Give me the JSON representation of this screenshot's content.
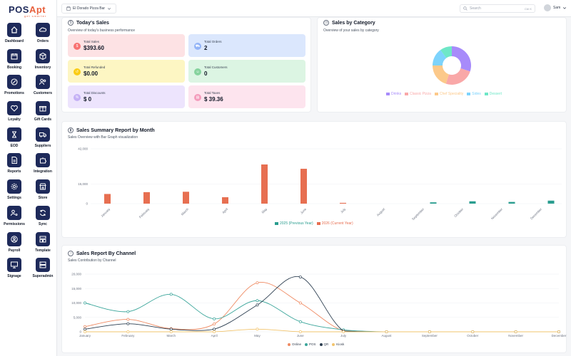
{
  "brand": {
    "name_main": "POS",
    "name_accent": "Apt",
    "tagline": "get smarter"
  },
  "header": {
    "store_name": "El Dorado Pizza Bar",
    "search_placeholder": "Search",
    "search_shortcut": "Ctrl K",
    "user_name": "Sam"
  },
  "sidebar": {
    "items": [
      {
        "label": "Dashboard",
        "icon": "home-icon"
      },
      {
        "label": "Orders",
        "icon": "cloud-icon"
      },
      {
        "label": "Booking",
        "icon": "calendar-icon"
      },
      {
        "label": "Inventory",
        "icon": "box-icon"
      },
      {
        "label": "Promotions",
        "icon": "badge-icon"
      },
      {
        "label": "Customers",
        "icon": "users-icon"
      },
      {
        "label": "Loyalty",
        "icon": "heart-icon"
      },
      {
        "label": "Gift Cards",
        "icon": "gift-icon"
      },
      {
        "label": "EOD",
        "icon": "hourglass-icon"
      },
      {
        "label": "Suppliers",
        "icon": "truck-icon"
      },
      {
        "label": "Reports",
        "icon": "file-icon"
      },
      {
        "label": "Integration",
        "icon": "puzzle-icon"
      },
      {
        "label": "Settings",
        "icon": "gear-icon"
      },
      {
        "label": "Store",
        "icon": "store-icon"
      },
      {
        "label": "Permissions",
        "icon": "user-key-icon"
      },
      {
        "label": "Sync",
        "icon": "sync-icon"
      },
      {
        "label": "Payroll",
        "icon": "user-circle-icon"
      },
      {
        "label": "Template",
        "icon": "template-icon"
      },
      {
        "label": "Signage",
        "icon": "monitor-icon"
      },
      {
        "label": "Superadmin",
        "icon": "server-icon"
      }
    ]
  },
  "todays_sales": {
    "title": "Today's Sales",
    "subtitle": "Overview of today's business performance",
    "stats": [
      {
        "label": "Total Sales",
        "value": "$393.60",
        "bg": "#fde2e4",
        "icon_bg": "#f87171",
        "icon": "$"
      },
      {
        "label": "Total Orders",
        "value": "2",
        "bg": "#dbe7fd",
        "icon_bg": "#93b4f7",
        "icon": "cart"
      },
      {
        "label": "Total Refunded",
        "value": "$0.00",
        "bg": "#fdf6c3",
        "icon_bg": "#facc15",
        "icon": "refund"
      },
      {
        "label": "Total Customers",
        "value": "0",
        "bg": "#dcf5e3",
        "icon_bg": "#86d39e",
        "icon": "users"
      },
      {
        "label": "Total Discounts",
        "value": "$ 0",
        "bg": "#ede4fd",
        "icon_bg": "#c4b0f5",
        "icon": "%"
      },
      {
        "label": "Total Taxes",
        "value": "$ 39.36",
        "bg": "#fde4ee",
        "icon_bg": "#f49cbc",
        "icon": "tax"
      }
    ]
  },
  "sales_by_category": {
    "title": "Sales by Category",
    "subtitle": "Overview of your sales by category",
    "chart_data": {
      "type": "pie",
      "categories": [
        "Drinks",
        "Classic Pizza",
        "Chef Speciality",
        "Sides",
        "Dessert"
      ],
      "values": [
        30,
        25,
        20,
        15,
        10
      ],
      "colors": [
        "#a78bfa",
        "#f9a8a8",
        "#fcc98a",
        "#7dd3fc",
        "#6ee7c7"
      ]
    }
  },
  "monthly_report": {
    "title": "Sales Summary Report by Month",
    "subtitle": "Sales Overview with Bar Graph visualization",
    "chart_data": {
      "type": "bar",
      "categories": [
        "January",
        "February",
        "March",
        "April",
        "May",
        "June",
        "July",
        "August",
        "September",
        "October",
        "November",
        "December"
      ],
      "series": [
        {
          "name": "2025 (Previous Year)",
          "color": "#2a9d8f",
          "values": [
            0,
            0,
            0,
            0,
            0,
            0,
            0,
            0,
            1000,
            1800,
            1300,
            2300
          ]
        },
        {
          "name": "2026 (Current Year)",
          "color": "#e76f51",
          "values": [
            7400,
            8800,
            9100,
            4900,
            30000,
            26700,
            600,
            0,
            0,
            0,
            0,
            0
          ]
        }
      ],
      "yticks": [
        "0",
        "15,000",
        "42,000"
      ],
      "ylim": [
        0,
        42000
      ]
    }
  },
  "channel_report": {
    "title": "Sales Report By Channel",
    "subtitle": "Sales Contribution by Channel",
    "chart_data": {
      "type": "line",
      "categories": [
        "January",
        "February",
        "March",
        "April",
        "May",
        "June",
        "July",
        "August",
        "September",
        "October",
        "November",
        "December"
      ],
      "series": [
        {
          "name": "Online",
          "color": "#ef8a62",
          "values": [
            1800,
            4300,
            1100,
            2700,
            17000,
            10000,
            300,
            0,
            0,
            0,
            0,
            0
          ]
        },
        {
          "name": "POS",
          "color": "#3aa59a",
          "values": [
            10000,
            7000,
            13000,
            4500,
            10800,
            3500,
            700,
            0,
            0,
            0,
            0,
            0
          ]
        },
        {
          "name": "QR",
          "color": "#2c3e50",
          "values": [
            900,
            2800,
            900,
            900,
            9300,
            19000,
            300,
            0,
            0,
            0,
            0,
            0
          ]
        },
        {
          "name": "Kiosk",
          "color": "#f2c46d",
          "values": [
            0,
            0,
            0,
            0,
            900,
            0,
            0,
            0,
            0,
            0,
            0,
            0
          ]
        }
      ],
      "yticks": [
        "0",
        "5,000",
        "10,000",
        "15,000",
        "20,000"
      ],
      "ylim": [
        0,
        20000
      ]
    }
  }
}
